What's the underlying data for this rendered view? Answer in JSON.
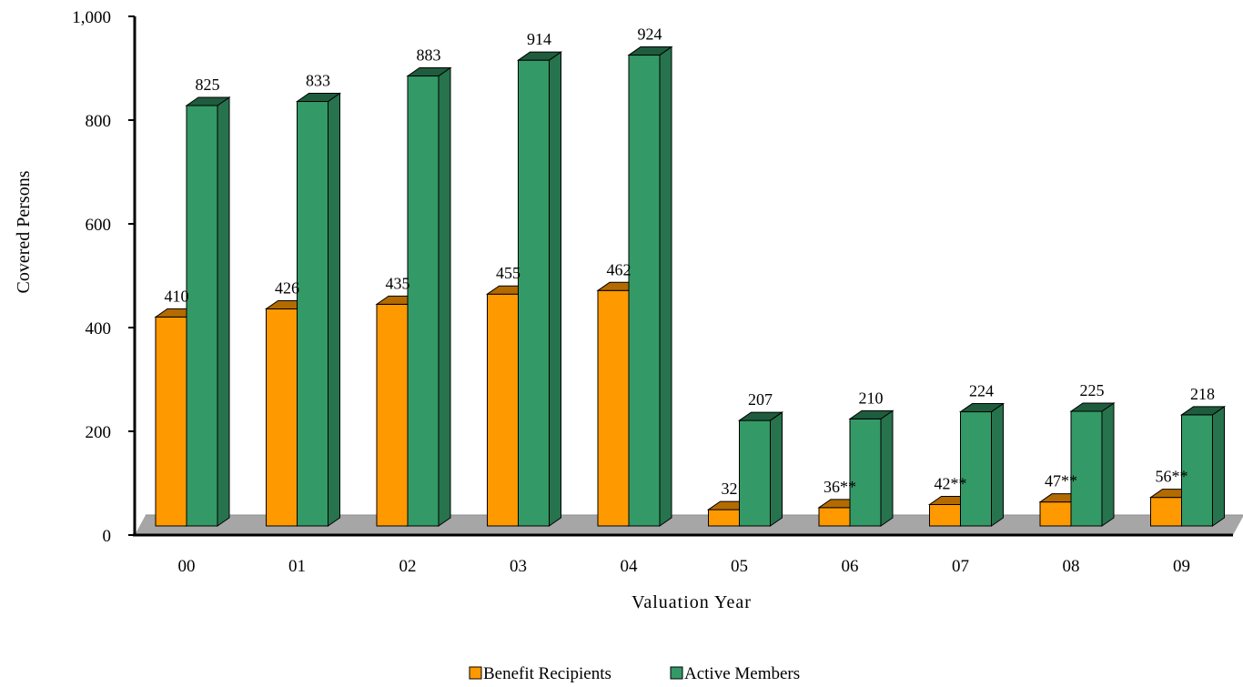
{
  "chart_data": {
    "type": "bar",
    "title": "",
    "xlabel": "Valuation Year",
    "ylabel": "Covered Persons",
    "ylim": [
      0,
      1000
    ],
    "yticks": [
      0,
      200,
      400,
      600,
      800,
      1000
    ],
    "ytick_labels": [
      "0",
      "200",
      "400",
      "600",
      "800",
      "1,000"
    ],
    "categories": [
      "00",
      "01",
      "02",
      "03",
      "04",
      "05",
      "06",
      "07",
      "08",
      "09"
    ],
    "series": [
      {
        "name": "Benefit Recipients",
        "color": "#FF9900",
        "values": [
          410,
          426,
          435,
          455,
          462,
          32,
          36,
          42,
          47,
          56
        ],
        "labels": [
          "410",
          "426",
          "435",
          "455",
          "462",
          "32",
          "36**",
          "42**",
          "47**",
          "56**"
        ]
      },
      {
        "name": "Active Members",
        "color": "#339966",
        "values": [
          825,
          833,
          883,
          914,
          924,
          207,
          210,
          224,
          225,
          218
        ],
        "labels": [
          "825",
          "833",
          "883",
          "914",
          "924",
          "207",
          "210",
          "224",
          "225",
          "218"
        ]
      }
    ],
    "legend_position": "bottom",
    "grid": false,
    "style": "3d-bar"
  }
}
